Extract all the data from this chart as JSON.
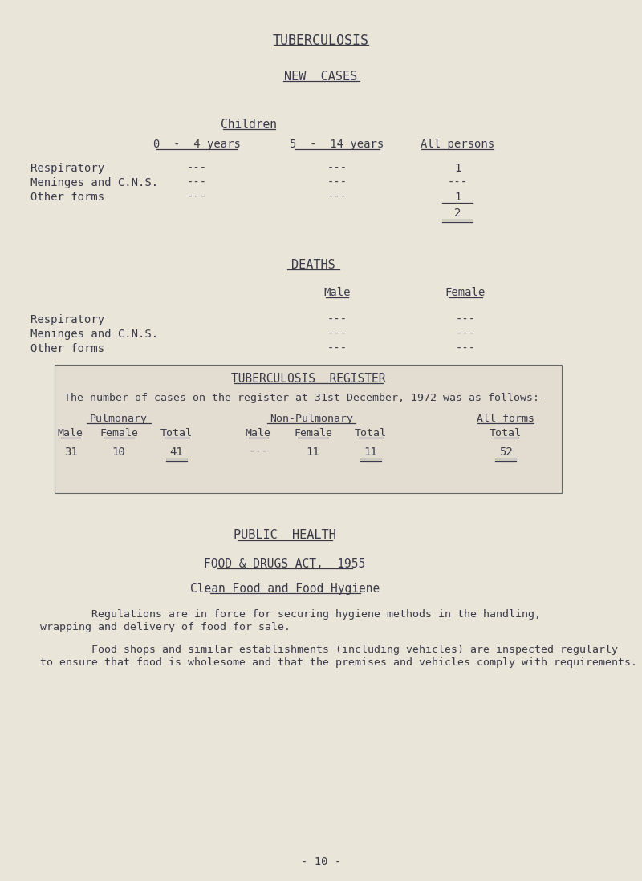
{
  "bg_color": "#e9e5d9",
  "title1": "TUBERCULOSIS",
  "title2": "NEW  CASES",
  "section1_title": "Children",
  "col_headers": [
    "0  -  4 years",
    "5  -  14 years",
    "All persons"
  ],
  "row_labels": [
    "Respiratory",
    "Meninges and C.N.S.",
    "Other forms"
  ],
  "new_cases_values": [
    [
      "---",
      "---",
      "1"
    ],
    [
      "---",
      "---",
      "---"
    ],
    [
      "---",
      "---",
      "1"
    ]
  ],
  "new_cases_total": "2",
  "deaths_title": "DEATHS",
  "deaths_col_headers": [
    "Male",
    "Female"
  ],
  "deaths_row_labels": [
    "Respiratory",
    "Meninges and C.N.S.",
    "Other forms"
  ],
  "deaths_values": [
    [
      "---",
      "---"
    ],
    [
      "---",
      "---"
    ],
    [
      "---",
      "---"
    ]
  ],
  "register_title": "TUBERCULOSIS  REGISTER",
  "register_text": "The number of cases on the register at 31st December, 1972 was as follows:-",
  "pulmonary_label": "Pulmonary",
  "non_pulmonary_label": "Non-Pulmonary",
  "all_forms_label": "All forms",
  "table_sub_headers_left": [
    "Male",
    "Female",
    "Total"
  ],
  "table_sub_headers_mid": [
    "Male",
    "Female",
    "Total"
  ],
  "table_sub_headers_right": [
    "Total"
  ],
  "table_values": [
    "31",
    "10",
    "41",
    "---",
    "11",
    "11",
    "52"
  ],
  "public_health_title": "PUBLIC  HEALTH",
  "food_act_title": "FOOD & DRUGS ACT,  1955",
  "food_hygiene_title": "Clean Food and Food Hygiene",
  "para1_line1": "        Regulations are in force for securing hygiene methods in the handling,",
  "para1_line2": "wrapping and delivery of food for sale.",
  "para2_line1": "        Food shops and similar establishments (including vehicles) are inspected regularly",
  "para2_line2": "to ensure that food is wholesome and that the premises and vehicles comply with requirements.",
  "page_number": "- 10 -",
  "font_color": "#3a3a4a",
  "box_color": "#e2ddd0"
}
